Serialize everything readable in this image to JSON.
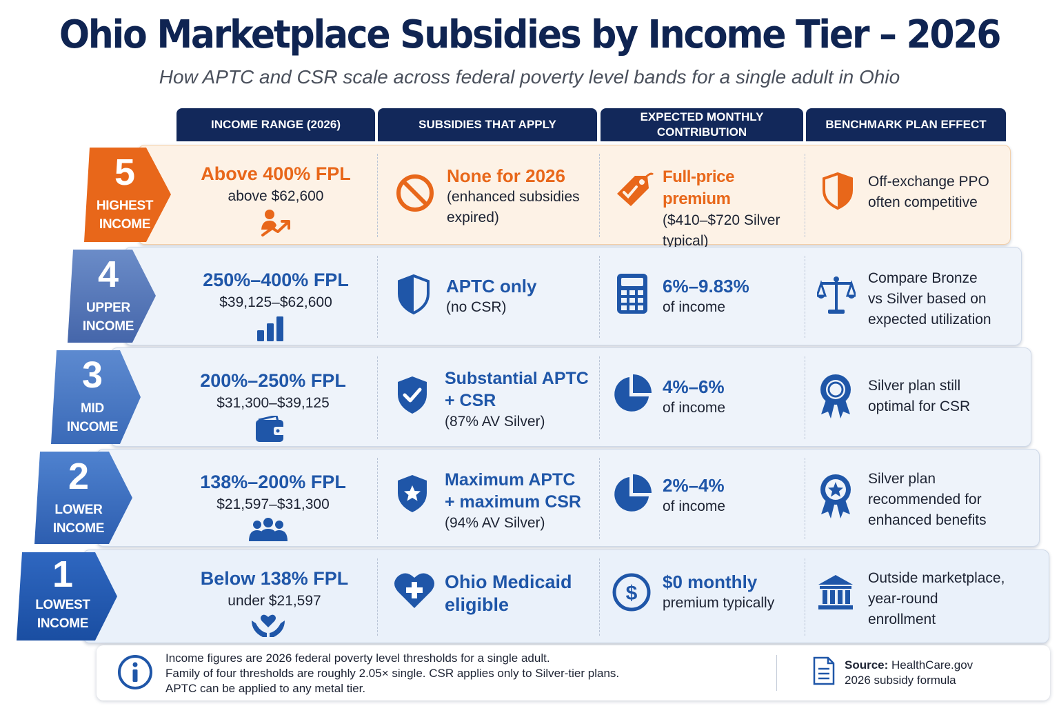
{
  "header": {
    "title": "Ohio Marketplace Subsidies by Income Tier – 2026",
    "subtitle": "How APTC and CSR scale across federal poverty level bands for a single adult in Ohio"
  },
  "columns": [
    "INCOME RANGE (2026)",
    "SUBSIDIES THAT APPLY",
    "EXPECTED MONTHLY CONTRIBUTION",
    "BENCHMARK PLAN EFFECT"
  ],
  "colors": {
    "navy": "#12285a",
    "orange": "#e8671a",
    "blue": "#1f56a8",
    "tier5_bg": "#fdf2e6",
    "tier_bg": "#eef3fa"
  },
  "tiers": [
    {
      "number": "5",
      "label_line1": "HIGHEST",
      "label_line2": "INCOME",
      "income_range": "Above 400% FPL",
      "income_dollars": "above $62,600",
      "income_icon": "person-trend-up-icon",
      "subsidy_icon": "prohibited-icon",
      "subsidy_head": "None for 2026",
      "subsidy_sub": [
        "(enhanced subsidies",
        "expired)"
      ],
      "contribution_icon": "price-tag-icon",
      "contribution_head": "Full-price premium",
      "contribution_sub": [
        "($410–$720 Silver",
        "typical)"
      ],
      "effect_icon": "shield-icon",
      "effect_text": [
        "Off-exchange PPO",
        "often competitive"
      ]
    },
    {
      "number": "4",
      "label_line1": "UPPER",
      "label_line2": "INCOME",
      "income_range": "250%–400% FPL",
      "income_dollars": "$39,125–$62,600",
      "income_icon": "bar-chart-icon",
      "subsidy_icon": "half-shield-icon",
      "subsidy_head": "APTC only",
      "subsidy_sub": [
        "(no CSR)"
      ],
      "contribution_icon": "calculator-icon",
      "contribution_head": "6%–9.83%",
      "contribution_sub": [
        "of income"
      ],
      "effect_icon": "balance-scale-icon",
      "effect_text": [
        "Compare Bronze",
        "vs Silver based on",
        "expected utilization"
      ]
    },
    {
      "number": "3",
      "label_line1": "MID",
      "label_line2": "INCOME",
      "income_range": "200%–250% FPL",
      "income_dollars": "$31,300–$39,125",
      "income_icon": "wallet-icon",
      "subsidy_icon": "shield-check-icon",
      "subsidy_head": [
        "Substantial APTC",
        "+ CSR"
      ],
      "subsidy_sub": [
        "(87% AV Silver)"
      ],
      "contribution_icon": "pie-chart-icon",
      "contribution_head": "4%–6%",
      "contribution_sub": [
        "of income"
      ],
      "effect_icon": "award-ribbon-icon",
      "effect_text": [
        "Silver plan still",
        "optimal for CSR"
      ]
    },
    {
      "number": "2",
      "label_line1": "LOWER",
      "label_line2": "INCOME",
      "income_range": "138%–200% FPL",
      "income_dollars": "$21,597–$31,300",
      "income_icon": "family-group-icon",
      "subsidy_icon": "shield-star-icon",
      "subsidy_head": [
        "Maximum APTC",
        "+ maximum CSR"
      ],
      "subsidy_sub": [
        "(94% AV Silver)"
      ],
      "contribution_icon": "pie-chart-icon",
      "contribution_head": "2%–4%",
      "contribution_sub": [
        "of income"
      ],
      "effect_icon": "star-medal-icon",
      "effect_text": [
        "Silver plan",
        "recommended for",
        "enhanced benefits"
      ]
    },
    {
      "number": "1",
      "label_line1": "LOWEST",
      "label_line2": "INCOME",
      "income_range": "Below 138% FPL",
      "income_dollars": "under $21,597",
      "income_icon": "hands-heart-icon",
      "subsidy_icon": "heart-plus-icon",
      "subsidy_head": [
        "Ohio Medicaid",
        "eligible"
      ],
      "subsidy_sub": [],
      "contribution_icon": "dollar-circle-icon",
      "contribution_head": "$0 monthly",
      "contribution_sub": [
        "premium typically"
      ],
      "effect_icon": "government-building-icon",
      "effect_text": [
        "Outside marketplace,",
        "year-round",
        "enrollment"
      ]
    }
  ],
  "footer": {
    "note_lines": [
      "Income figures are 2026 federal poverty level thresholds for a single adult.",
      "Family of four thresholds are roughly 2.05× single. CSR applies only to Silver-tier plans.",
      "APTC can be applied to any metal tier."
    ],
    "source_label": "Source:",
    "source_value": "HealthCare.gov",
    "source_line2": "2026 subsidy formula"
  }
}
